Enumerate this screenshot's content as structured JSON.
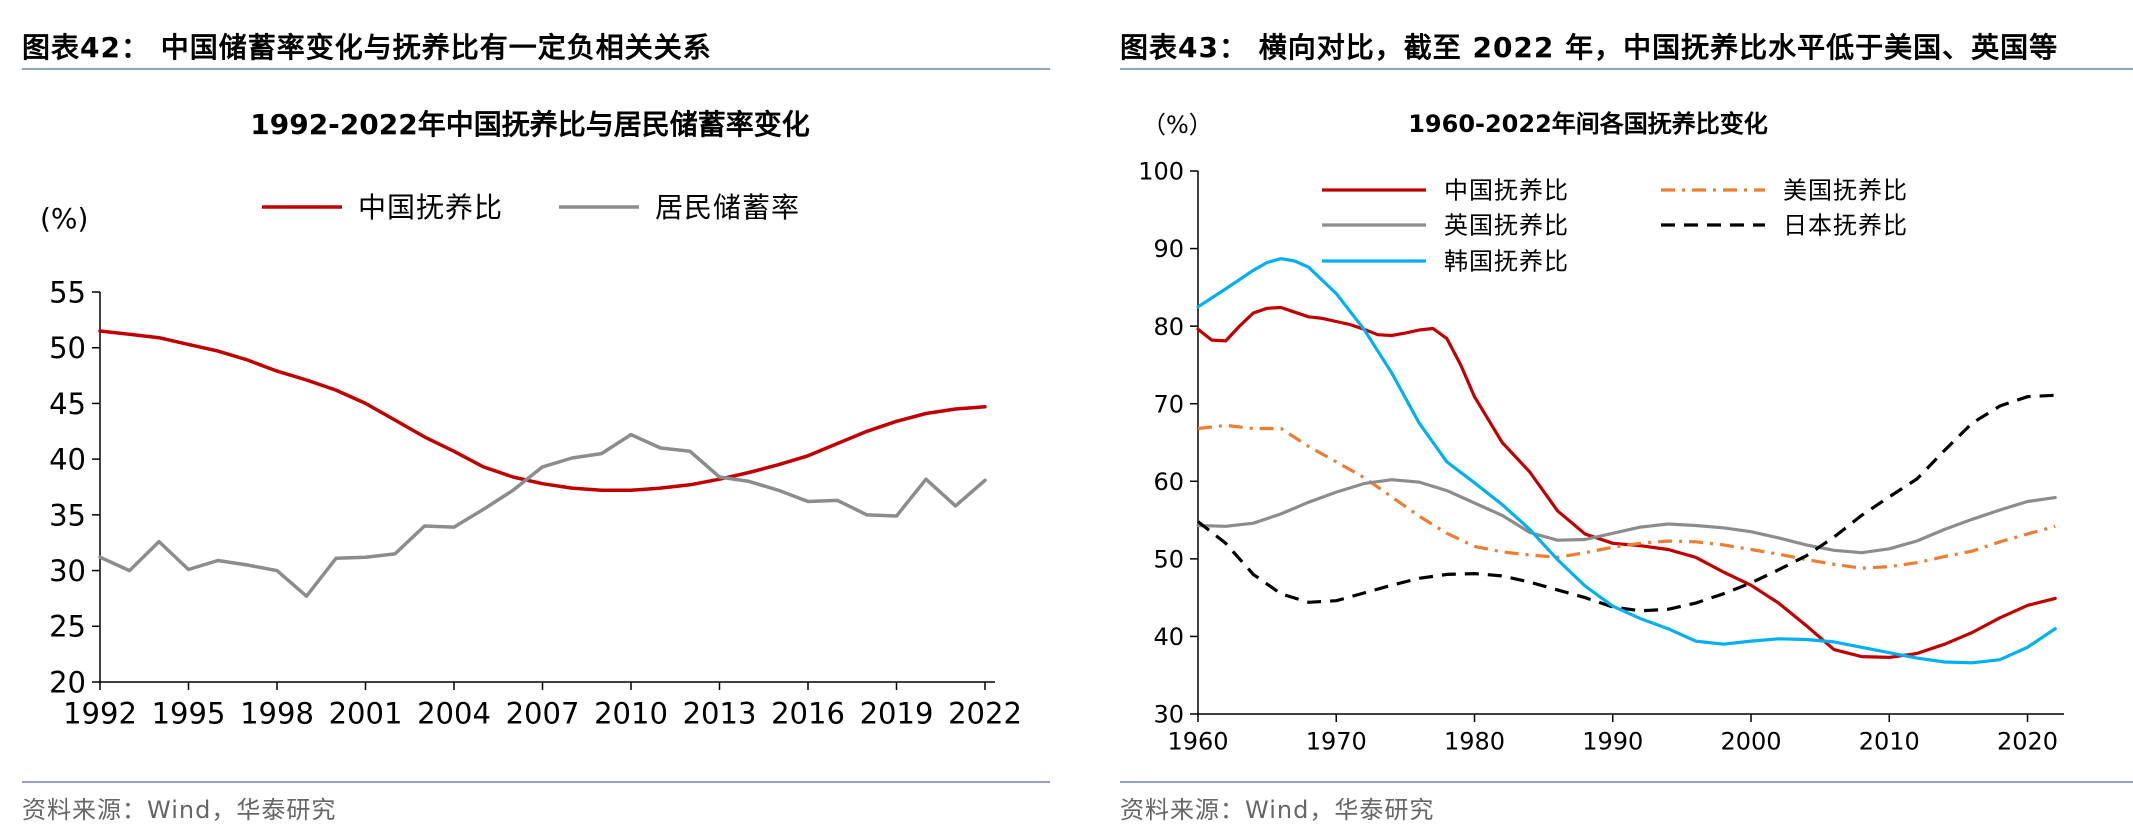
{
  "left": {
    "heading": "图表42：  中国储蓄率变化与抚养比有一定负相关关系",
    "source": "资料来源：Wind，华泰研究",
    "chart_data": {
      "type": "line",
      "title": "1992-2022年中国抚养比与居民储蓄率变化",
      "unit": "(%)",
      "xlabel": "",
      "ylabel": "(%)",
      "xlim": [
        1992,
        2022
      ],
      "ylim": [
        20,
        55
      ],
      "xticks": [
        "1992",
        "1995",
        "1998",
        "2001",
        "2004",
        "2007",
        "2010",
        "2013",
        "2016",
        "2019",
        "2022"
      ],
      "yticks": [
        "20",
        "25",
        "30",
        "35",
        "40",
        "45",
        "50",
        "55"
      ],
      "legend": "top",
      "series": [
        {
          "name": "中国抚养比",
          "color": "#c00000",
          "style": "solid",
          "x": [
            1992,
            1993,
            1994,
            1995,
            1996,
            1997,
            1998,
            1999,
            2000,
            2001,
            2002,
            2003,
            2004,
            2005,
            2006,
            2007,
            2008,
            2009,
            2010,
            2011,
            2012,
            2013,
            2014,
            2015,
            2016,
            2017,
            2018,
            2019,
            2020,
            2021,
            2022
          ],
          "y": [
            51.5,
            51.2,
            50.9,
            50.3,
            49.7,
            48.9,
            47.9,
            47.1,
            46.2,
            45.0,
            43.5,
            42.0,
            40.7,
            39.3,
            38.4,
            37.8,
            37.4,
            37.2,
            37.2,
            37.4,
            37.7,
            38.2,
            38.8,
            39.5,
            40.3,
            41.4,
            42.5,
            43.4,
            44.1,
            44.5,
            44.7
          ]
        },
        {
          "name": "居民储蓄率",
          "color": "#8c8c8c",
          "style": "solid",
          "x": [
            1992,
            1993,
            1994,
            1995,
            1996,
            1997,
            1998,
            1999,
            2000,
            2001,
            2002,
            2003,
            2004,
            2005,
            2006,
            2007,
            2008,
            2009,
            2010,
            2011,
            2012,
            2013,
            2014,
            2015,
            2016,
            2017,
            2018,
            2019,
            2020,
            2021,
            2022
          ],
          "y": [
            31.2,
            30.0,
            32.6,
            30.1,
            30.9,
            30.5,
            30.0,
            27.7,
            31.1,
            31.2,
            31.5,
            34.0,
            33.9,
            35.5,
            37.2,
            39.3,
            40.1,
            40.5,
            42.2,
            41.0,
            40.7,
            38.4,
            38.0,
            37.2,
            36.2,
            36.3,
            35.0,
            34.9,
            38.2,
            35.8,
            38.1
          ]
        }
      ]
    }
  },
  "right": {
    "heading": "图表43：  横向对比，截至 2022 年，中国抚养比水平低于美国、英国等",
    "source": "资料来源：Wind，华泰研究",
    "chart_data": {
      "type": "line",
      "title": "1960-2022年间各国抚养比变化",
      "unit": "（%）",
      "xlabel": "",
      "ylabel": "（%）",
      "xlim": [
        1960,
        2023
      ],
      "ylim": [
        30,
        100
      ],
      "xticks": [
        "1960",
        "1970",
        "1980",
        "1990",
        "2000",
        "2010",
        "2020"
      ],
      "yticks": [
        "30",
        "40",
        "50",
        "60",
        "70",
        "80",
        "90",
        "100"
      ],
      "legend": "top-left",
      "series": [
        {
          "name": "中国抚养比",
          "color": "#c00000",
          "style": "solid",
          "x": [
            1960,
            1961,
            1962,
            1963,
            1964,
            1965,
            1966,
            1967,
            1968,
            1969,
            1970,
            1971,
            1972,
            1973,
            1974,
            1975,
            1976,
            1977,
            1978,
            1979,
            1980,
            1982,
            1984,
            1986,
            1988,
            1990,
            1992,
            1994,
            1996,
            1998,
            2000,
            2002,
            2004,
            2006,
            2008,
            2010,
            2012,
            2014,
            2016,
            2018,
            2020,
            2022
          ],
          "y": [
            79.6,
            78.2,
            78.1,
            80.0,
            81.7,
            82.3,
            82.4,
            81.8,
            81.2,
            81.0,
            80.6,
            80.2,
            79.6,
            78.9,
            78.8,
            79.1,
            79.5,
            79.7,
            78.4,
            75.0,
            70.9,
            65.0,
            61.2,
            56.2,
            53.2,
            52.0,
            51.7,
            51.2,
            50.2,
            48.3,
            46.6,
            44.3,
            41.4,
            38.3,
            37.4,
            37.3,
            37.8,
            39.0,
            40.5,
            42.4,
            44.0,
            44.9
          ]
        },
        {
          "name": "美国抚养比",
          "color": "#ed7d31",
          "style": "dashdot",
          "x": [
            1960,
            1962,
            1964,
            1966,
            1968,
            1970,
            1972,
            1974,
            1976,
            1978,
            1980,
            1982,
            1984,
            1986,
            1988,
            1990,
            1992,
            1994,
            1996,
            1998,
            2000,
            2002,
            2004,
            2006,
            2008,
            2010,
            2012,
            2014,
            2016,
            2018,
            2020,
            2022
          ],
          "y": [
            66.8,
            67.2,
            66.8,
            66.8,
            64.5,
            62.5,
            60.5,
            58.0,
            55.5,
            53.3,
            51.6,
            50.9,
            50.5,
            50.2,
            50.8,
            51.5,
            52.0,
            52.3,
            52.2,
            51.8,
            51.2,
            50.6,
            49.9,
            49.3,
            48.8,
            49.0,
            49.5,
            50.3,
            51.0,
            52.2,
            53.2,
            54.2
          ]
        },
        {
          "name": "英国抚养比",
          "color": "#8c8c8c",
          "style": "solid",
          "x": [
            1960,
            1962,
            1964,
            1966,
            1968,
            1970,
            1972,
            1974,
            1976,
            1978,
            1980,
            1982,
            1984,
            1986,
            1988,
            1990,
            1992,
            1994,
            1996,
            1998,
            2000,
            2002,
            2004,
            2006,
            2008,
            2010,
            2012,
            2014,
            2016,
            2018,
            2020,
            2022
          ],
          "y": [
            54.3,
            54.2,
            54.6,
            55.8,
            57.3,
            58.6,
            59.7,
            60.2,
            59.9,
            58.8,
            57.2,
            55.6,
            53.4,
            52.4,
            52.5,
            53.3,
            54.1,
            54.5,
            54.3,
            54.0,
            53.5,
            52.7,
            51.8,
            51.1,
            50.8,
            51.3,
            52.3,
            53.8,
            55.1,
            56.3,
            57.4,
            57.9
          ]
        },
        {
          "name": "日本抚养比",
          "color": "#000000",
          "style": "dashed",
          "x": [
            1960,
            1962,
            1964,
            1966,
            1968,
            1970,
            1972,
            1974,
            1976,
            1978,
            1980,
            1982,
            1984,
            1986,
            1988,
            1990,
            1992,
            1994,
            1996,
            1998,
            2000,
            2002,
            2004,
            2006,
            2008,
            2010,
            2012,
            2014,
            2016,
            2018,
            2020,
            2022
          ],
          "y": [
            54.8,
            52.0,
            48.0,
            45.5,
            44.4,
            44.6,
            45.6,
            46.6,
            47.5,
            48.0,
            48.1,
            47.8,
            47.0,
            46.0,
            45.0,
            43.8,
            43.3,
            43.5,
            44.3,
            45.5,
            46.9,
            48.6,
            50.4,
            52.8,
            55.6,
            58.0,
            60.3,
            64.0,
            67.5,
            69.7,
            70.9,
            71.1
          ]
        },
        {
          "name": "韩国抚养比",
          "color": "#00b0f0",
          "style": "solid",
          "x": [
            1960,
            1962,
            1964,
            1965,
            1966,
            1967,
            1968,
            1970,
            1972,
            1974,
            1976,
            1978,
            1980,
            1982,
            1984,
            1986,
            1988,
            1990,
            1992,
            1994,
            1996,
            1998,
            2000,
            2002,
            2004,
            2006,
            2008,
            2010,
            2012,
            2014,
            2016,
            2018,
            2020,
            2022
          ],
          "y": [
            82.5,
            84.8,
            87.2,
            88.2,
            88.7,
            88.4,
            87.6,
            84.2,
            79.6,
            74.0,
            67.5,
            62.5,
            59.8,
            57.0,
            53.8,
            49.9,
            46.5,
            43.9,
            42.3,
            41.0,
            39.4,
            39.0,
            39.4,
            39.7,
            39.6,
            39.3,
            38.6,
            37.9,
            37.2,
            36.7,
            36.6,
            37.0,
            38.6,
            41.0
          ]
        }
      ]
    }
  }
}
